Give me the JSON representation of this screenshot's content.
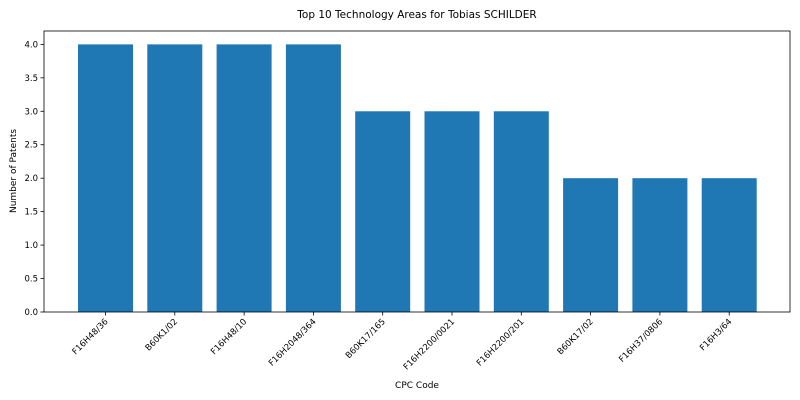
{
  "chart_data": {
    "type": "bar",
    "title": "Top 10 Technology Areas for Tobias SCHILDER",
    "xlabel": "CPC Code",
    "ylabel": "Number of Patents",
    "categories": [
      "F16H48/36",
      "B60K1/02",
      "F16H48/10",
      "F16H2048/364",
      "B60K17/165",
      "F16H2200/0021",
      "F16H2200/201",
      "B60K17/02",
      "F16H37/0806",
      "F16H3/64"
    ],
    "values": [
      4,
      4,
      4,
      4,
      3,
      3,
      3,
      2,
      2,
      2
    ],
    "ylim": [
      0,
      4.2
    ],
    "yticks": [
      "0.0",
      "0.5",
      "1.0",
      "1.5",
      "2.0",
      "2.5",
      "3.0",
      "3.5",
      "4.0"
    ],
    "grid": false,
    "bar_color": "#1f77b4"
  }
}
